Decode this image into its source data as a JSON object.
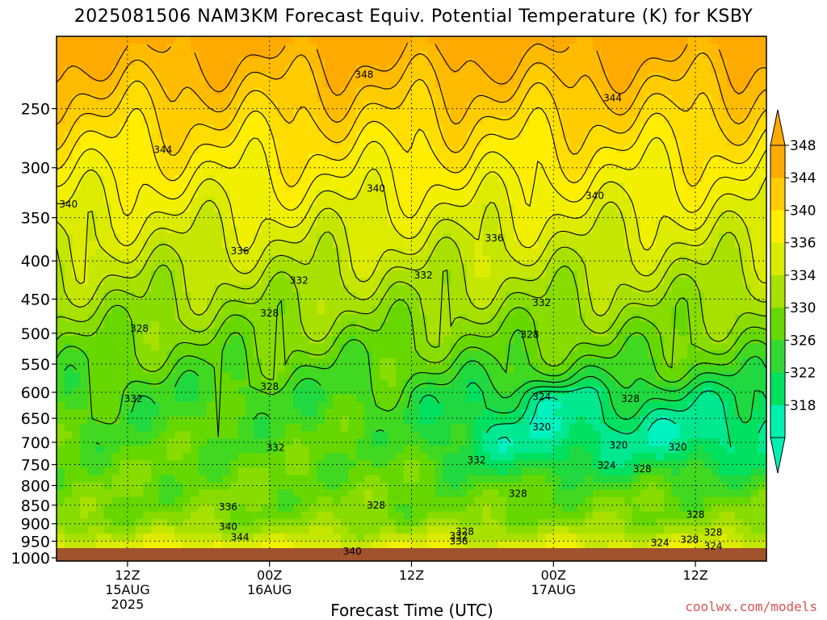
{
  "title": "2025081506 NAM3KM Forecast Equiv. Potential Temperature (K) for KSBY",
  "credit": "coolwx.com/models",
  "chart_data": {
    "type": "heatmap",
    "title": "2025081506 NAM3KM Forecast Equiv. Potential Temperature (K) for KSBY",
    "xlabel": "Forecast Time (UTC)",
    "ylabel": "",
    "x_ticks": [
      {
        "hour": 6,
        "lines": [
          "12Z",
          "15AUG",
          "2025"
        ]
      },
      {
        "hour": 18,
        "lines": [
          "00Z",
          "16AUG"
        ]
      },
      {
        "hour": 30,
        "lines": [
          "12Z"
        ]
      },
      {
        "hour": 42,
        "lines": [
          "00Z",
          "17AUG"
        ]
      },
      {
        "hour": 54,
        "lines": [
          "12Z"
        ]
      }
    ],
    "xlim": [
      0,
      60
    ],
    "y_ticks": [
      250,
      300,
      350,
      400,
      450,
      500,
      550,
      600,
      650,
      700,
      750,
      800,
      850,
      900,
      950,
      1000
    ],
    "ylim": [
      1010,
      200
    ],
    "y_scale": "log-pressure",
    "colorbar": {
      "ticks": [
        348,
        344,
        340,
        336,
        334,
        330,
        326,
        322,
        318
      ],
      "colors": [
        "#ffaa00",
        "#ffcc00",
        "#ffee00",
        "#d8ec00",
        "#a8e000",
        "#66d800",
        "#33d833",
        "#00e060",
        "#00f0b0"
      ]
    },
    "contour_labels": [
      {
        "t": 26.0,
        "p": 225,
        "v": "348"
      },
      {
        "t": 47.0,
        "p": 242,
        "v": "344"
      },
      {
        "t": 9.0,
        "p": 284,
        "v": "344"
      },
      {
        "t": 1.0,
        "p": 336,
        "v": "340"
      },
      {
        "t": 27.0,
        "p": 320,
        "v": "340"
      },
      {
        "t": 45.5,
        "p": 327,
        "v": "340"
      },
      {
        "t": 37.0,
        "p": 373,
        "v": "336"
      },
      {
        "t": 15.5,
        "p": 388,
        "v": "336"
      },
      {
        "t": 20.5,
        "p": 425,
        "v": "332"
      },
      {
        "t": 31.0,
        "p": 418,
        "v": "332"
      },
      {
        "t": 41.0,
        "p": 455,
        "v": "332"
      },
      {
        "t": 7.0,
        "p": 493,
        "v": "328"
      },
      {
        "t": 18.0,
        "p": 470,
        "v": "328"
      },
      {
        "t": 40.0,
        "p": 502,
        "v": "328"
      },
      {
        "t": 18.0,
        "p": 590,
        "v": "328"
      },
      {
        "t": 6.5,
        "p": 612,
        "v": "332"
      },
      {
        "t": 41.0,
        "p": 608,
        "v": "324"
      },
      {
        "t": 48.5,
        "p": 612,
        "v": "328"
      },
      {
        "t": 41.0,
        "p": 668,
        "v": "320"
      },
      {
        "t": 47.5,
        "p": 706,
        "v": "320"
      },
      {
        "t": 52.5,
        "p": 711,
        "v": "320"
      },
      {
        "t": 18.5,
        "p": 712,
        "v": "332"
      },
      {
        "t": 35.5,
        "p": 740,
        "v": "332"
      },
      {
        "t": 46.5,
        "p": 752,
        "v": "324"
      },
      {
        "t": 49.5,
        "p": 760,
        "v": "328"
      },
      {
        "t": 39.0,
        "p": 820,
        "v": "328"
      },
      {
        "t": 27.0,
        "p": 850,
        "v": "328"
      },
      {
        "t": 14.5,
        "p": 855,
        "v": "336"
      },
      {
        "t": 54.0,
        "p": 875,
        "v": "328"
      },
      {
        "t": 14.5,
        "p": 908,
        "v": "340"
      },
      {
        "t": 15.5,
        "p": 938,
        "v": "344"
      },
      {
        "t": 34.0,
        "p": 935,
        "v": "332"
      },
      {
        "t": 34.0,
        "p": 950,
        "v": "336"
      },
      {
        "t": 34.5,
        "p": 922,
        "v": "328"
      },
      {
        "t": 51.0,
        "p": 955,
        "v": "324"
      },
      {
        "t": 53.5,
        "p": 945,
        "v": "328"
      },
      {
        "t": 55.5,
        "p": 925,
        "v": "328"
      },
      {
        "t": 55.5,
        "p": 965,
        "v": "324"
      },
      {
        "t": 25.0,
        "p": 980,
        "v": "340"
      }
    ]
  }
}
